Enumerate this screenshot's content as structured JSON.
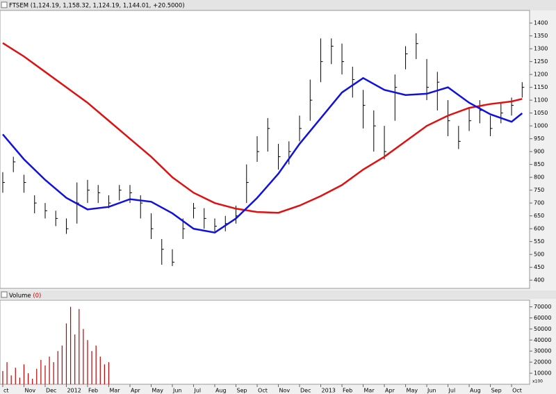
{
  "chart_data": [
    {
      "type": "ohlc",
      "title": "FTSEM (1,124.19, 1,158.32, 1,124.19, 1,144.01, +20.5000)",
      "color": "#000000",
      "xlim": [
        -0.13,
        24.85
      ],
      "ylim": [
        368,
        1449
      ],
      "yticks": [
        400,
        450,
        500,
        550,
        600,
        650,
        700,
        750,
        800,
        850,
        900,
        950,
        1000,
        1050,
        1100,
        1150,
        1200,
        1250,
        1300,
        1350,
        1400
      ],
      "x": [
        0,
        0.5,
        1,
        1.5,
        2,
        2.5,
        3,
        3.5,
        4,
        4.5,
        5,
        5.5,
        6,
        6.5,
        7,
        7.5,
        8,
        8.5,
        9,
        9.5,
        10,
        10.5,
        11,
        11.5,
        12,
        12.5,
        13,
        13.5,
        14,
        14.5,
        15,
        15.5,
        16,
        16.5,
        17,
        17.5,
        18,
        18.5,
        19,
        19.5,
        20,
        20.5,
        21,
        21.5,
        22,
        22.5,
        23,
        23.5,
        24,
        24.5
      ],
      "high": [
        820,
        880,
        810,
        730,
        700,
        670,
        640,
        780,
        790,
        770,
        730,
        770,
        770,
        730,
        660,
        560,
        520,
        640,
        700,
        680,
        640,
        650,
        690,
        850,
        960,
        1030,
        930,
        940,
        1040,
        1180,
        1340,
        1340,
        1320,
        1230,
        1140,
        1060,
        1000,
        1200,
        1310,
        1360,
        1260,
        1210,
        1100,
        1000,
        1070,
        1100,
        1040,
        1090,
        1110,
        1170
      ],
      "low": [
        740,
        820,
        740,
        660,
        640,
        610,
        580,
        620,
        700,
        700,
        680,
        710,
        700,
        640,
        560,
        460,
        455,
        560,
        640,
        600,
        590,
        590,
        620,
        700,
        860,
        900,
        830,
        850,
        940,
        1020,
        1170,
        1240,
        1200,
        1110,
        990,
        900,
        870,
        1020,
        1220,
        1260,
        1100,
        1060,
        960,
        910,
        980,
        1010,
        960,
        1010,
        1040,
        1110
      ],
      "close": [
        780,
        860,
        780,
        700,
        670,
        640,
        600,
        700,
        750,
        740,
        700,
        750,
        740,
        700,
        600,
        520,
        470,
        600,
        680,
        640,
        610,
        620,
        650,
        780,
        900,
        990,
        880,
        900,
        990,
        1100,
        1250,
        1310,
        1250,
        1180,
        1080,
        1000,
        900,
        1150,
        1280,
        1320,
        1150,
        1170,
        1020,
        940,
        1020,
        1060,
        990,
        1050,
        1080,
        1150
      ],
      "overlays": [
        {
          "color": "#e01010",
          "x": [
            0,
            1,
            2,
            3,
            4,
            5,
            6,
            7,
            8,
            9,
            10,
            11,
            12,
            13,
            14,
            15,
            16,
            17,
            18,
            19,
            20,
            21,
            22,
            23,
            24,
            24.5
          ],
          "values": [
            1322,
            1270,
            1210,
            1150,
            1090,
            1020,
            950,
            880,
            800,
            740,
            700,
            678,
            665,
            662,
            690,
            727,
            770,
            830,
            880,
            940,
            1000,
            1040,
            1070,
            1085,
            1095,
            1105
          ]
        },
        {
          "color": "#1010e0",
          "x": [
            0,
            1,
            2,
            3,
            4,
            5,
            6,
            7,
            8,
            9,
            10,
            11,
            12,
            13,
            14,
            15,
            16,
            17,
            18,
            19,
            20,
            21,
            22,
            23,
            24,
            24.5
          ],
          "values": [
            967,
            870,
            790,
            720,
            675,
            685,
            715,
            705,
            660,
            600,
            585,
            640,
            720,
            814,
            930,
            1030,
            1130,
            1186,
            1140,
            1120,
            1125,
            1150,
            1090,
            1045,
            1016,
            1049
          ]
        }
      ]
    },
    {
      "type": "bar",
      "title": "Volume",
      "title_note": "(0)",
      "y_unit_label": "x100",
      "color": "#c00000",
      "xlim": [
        -0.13,
        24.85
      ],
      "ylim": [
        0,
        76000
      ],
      "yticks": [
        10000,
        20000,
        30000,
        40000,
        50000,
        60000,
        70000
      ],
      "xticks": [
        {
          "value": 0,
          "label": "ct"
        },
        {
          "value": 1,
          "label": "Nov"
        },
        {
          "value": 2,
          "label": "Dec"
        },
        {
          "value": 3,
          "label": "2012"
        },
        {
          "value": 4,
          "label": "Feb"
        },
        {
          "value": 5,
          "label": "Mar"
        },
        {
          "value": 6,
          "label": "Apr"
        },
        {
          "value": 7,
          "label": "May"
        },
        {
          "value": 8,
          "label": "Jun"
        },
        {
          "value": 9,
          "label": "Jul"
        },
        {
          "value": 10,
          "label": "Aug"
        },
        {
          "value": 11,
          "label": "Sep"
        },
        {
          "value": 12,
          "label": "Oct"
        },
        {
          "value": 13,
          "label": "Nov"
        },
        {
          "value": 14,
          "label": "Dec"
        },
        {
          "value": 15,
          "label": "2013"
        },
        {
          "value": 16,
          "label": "Feb"
        },
        {
          "value": 17,
          "label": "Mar"
        },
        {
          "value": 18,
          "label": "Apr"
        },
        {
          "value": 19,
          "label": "May"
        },
        {
          "value": 20,
          "label": "Jun"
        },
        {
          "value": 21,
          "label": "Jul"
        },
        {
          "value": 22,
          "label": "Aug"
        },
        {
          "value": 23,
          "label": "Sep"
        },
        {
          "value": 24,
          "label": "Oct"
        }
      ],
      "x": [
        0,
        0.2,
        0.4,
        0.6,
        0.8,
        1,
        1.2,
        1.4,
        1.6,
        1.8,
        2,
        2.2,
        2.4,
        2.6,
        2.8,
        3,
        3.2,
        3.4,
        3.6,
        3.8,
        4,
        4.2,
        4.4,
        4.6,
        4.8,
        5
      ],
      "values": [
        12000,
        20000,
        8000,
        15000,
        6000,
        18000,
        10000,
        5000,
        14000,
        22000,
        17000,
        25000,
        20000,
        30000,
        35000,
        55000,
        70000,
        45000,
        68000,
        50000,
        40000,
        30000,
        35000,
        25000,
        18000,
        20000
      ]
    }
  ]
}
